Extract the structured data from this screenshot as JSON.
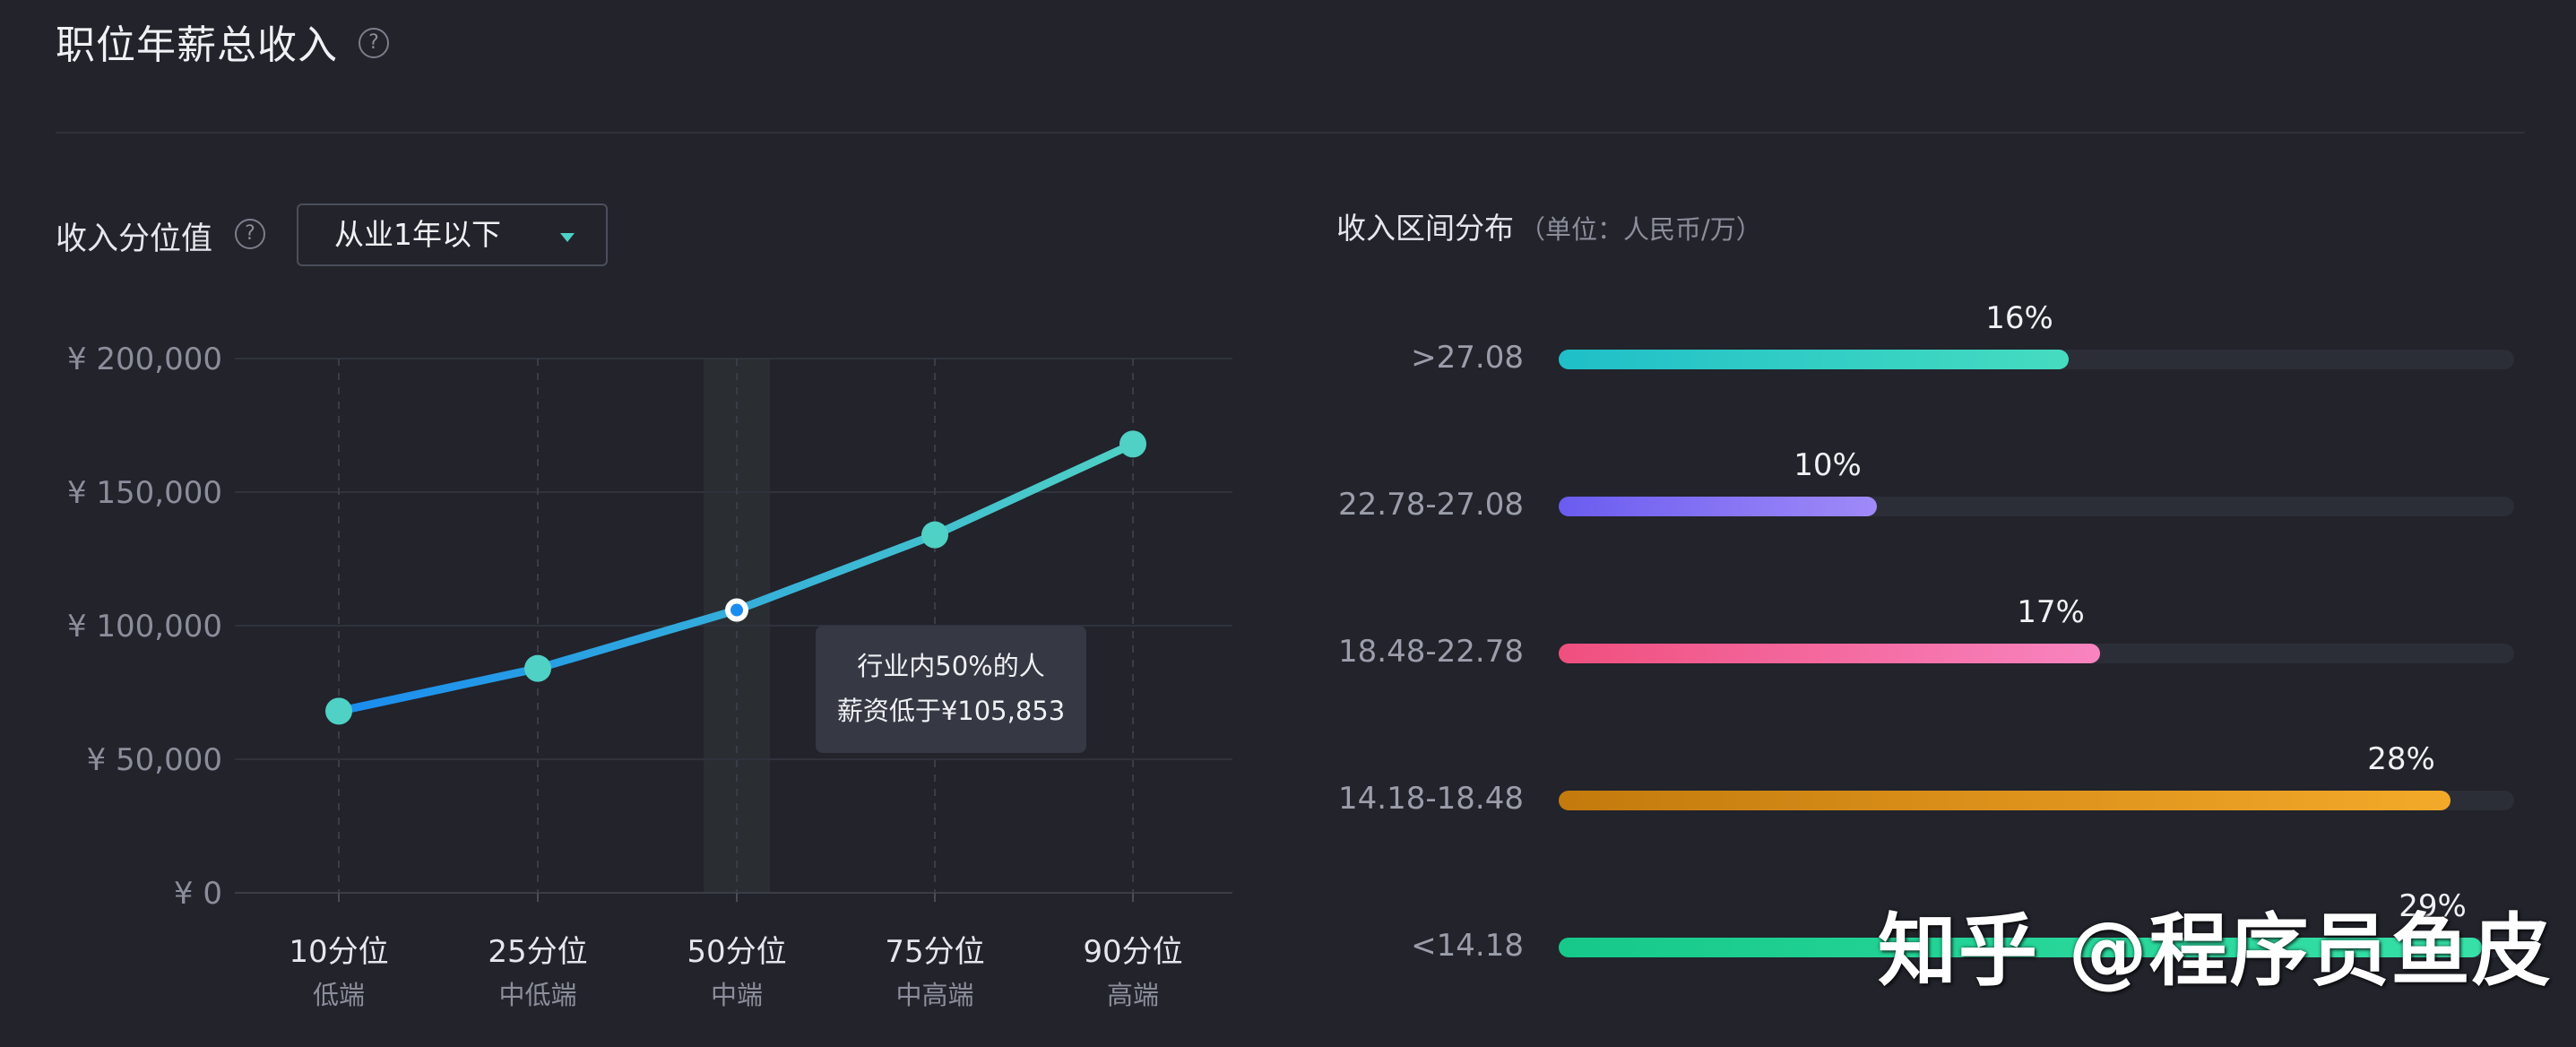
{
  "header": {
    "title": "职位年薪总收入",
    "help": "?"
  },
  "percentile": {
    "label": "收入分位值",
    "help": "?",
    "select_value": "从业1年以下"
  },
  "distribution": {
    "title": "收入区间分布",
    "unit": "（单位：人民币/万）"
  },
  "tooltip": {
    "line1": "行业内50%的人",
    "line2": "薪资低于¥105,853"
  },
  "watermark": "知乎 @程序员鱼皮",
  "colors": {
    "background": "#22232b",
    "line_start": "#1a8cf0",
    "line_end": "#4fd1c5",
    "marker": "#4fd1c5"
  },
  "chart_data": [
    {
      "type": "line",
      "title": "职位年薪总收入",
      "x": [
        "10分位",
        "25分位",
        "50分位",
        "75分位",
        "90分位"
      ],
      "x_sublabels": [
        "低端",
        "中低端",
        "中端",
        "中高端",
        "高端"
      ],
      "series": [
        {
          "values": [
            68000,
            84000,
            105853,
            134000,
            168000
          ]
        }
      ],
      "highlight_index": 2,
      "y_ticks": [
        0,
        50000,
        100000,
        150000,
        200000
      ],
      "y_tick_labels": [
        "¥ 0",
        "¥ 50,000",
        "¥ 100,000",
        "¥ 150,000",
        "¥ 200,000"
      ],
      "ylim": [
        0,
        200000
      ],
      "grid": true,
      "xlabel": "",
      "ylabel": ""
    },
    {
      "type": "bar",
      "orientation": "horizontal",
      "title": "收入区间分布",
      "categories": [
        ">27.08",
        "22.78-27.08",
        "18.48-22.78",
        "14.18-18.48",
        "<14.18"
      ],
      "values": [
        16,
        10,
        17,
        28,
        29
      ],
      "value_labels": [
        "16%",
        "10%",
        "17%",
        "28%",
        "29%"
      ],
      "max": 30,
      "colors": [
        [
          "#1fbfc9",
          "#45dcc0"
        ],
        [
          "#6a5cf0",
          "#a08af8"
        ],
        [
          "#f04f7e",
          "#f884c0"
        ],
        [
          "#c47a0c",
          "#f3a929"
        ],
        [
          "#16c98a",
          "#36e0a7"
        ]
      ]
    }
  ]
}
